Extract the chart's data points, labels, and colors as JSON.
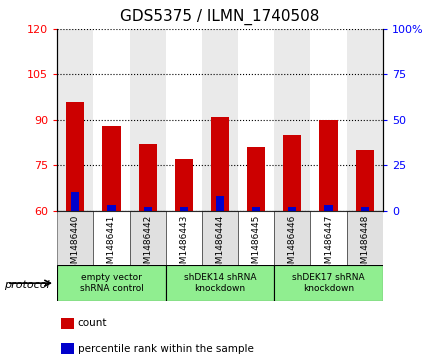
{
  "title": "GDS5375 / ILMN_1740508",
  "samples": [
    "GSM1486440",
    "GSM1486441",
    "GSM1486442",
    "GSM1486443",
    "GSM1486444",
    "GSM1486445",
    "GSM1486446",
    "GSM1486447",
    "GSM1486448"
  ],
  "counts": [
    96,
    88,
    82,
    77,
    91,
    81,
    85,
    90,
    80
  ],
  "percentile_ranks": [
    10,
    3,
    2,
    2,
    8,
    2,
    2,
    3,
    2
  ],
  "bar_bottom": 60,
  "ylim_left": [
    60,
    120
  ],
  "ylim_right": [
    0,
    100
  ],
  "yticks_left": [
    60,
    75,
    90,
    105,
    120
  ],
  "yticks_right": [
    0,
    25,
    50,
    75,
    100
  ],
  "bar_color": "#cc0000",
  "percentile_color": "#0000cc",
  "protocol_groups": [
    {
      "label": "empty vector\nshRNA control",
      "start": 0,
      "end": 3
    },
    {
      "label": "shDEK14 shRNA\nknockdown",
      "start": 3,
      "end": 6
    },
    {
      "label": "shDEK17 shRNA\nknockdown",
      "start": 6,
      "end": 9
    }
  ],
  "group_color": "#90ee90",
  "legend_items": [
    {
      "label": "count",
      "color": "#cc0000"
    },
    {
      "label": "percentile rank within the sample",
      "color": "#0000cc"
    }
  ],
  "protocol_label": "protocol",
  "bar_width": 0.5,
  "col_bg_even": "#cccccc",
  "col_bg_odd": "#ffffff"
}
